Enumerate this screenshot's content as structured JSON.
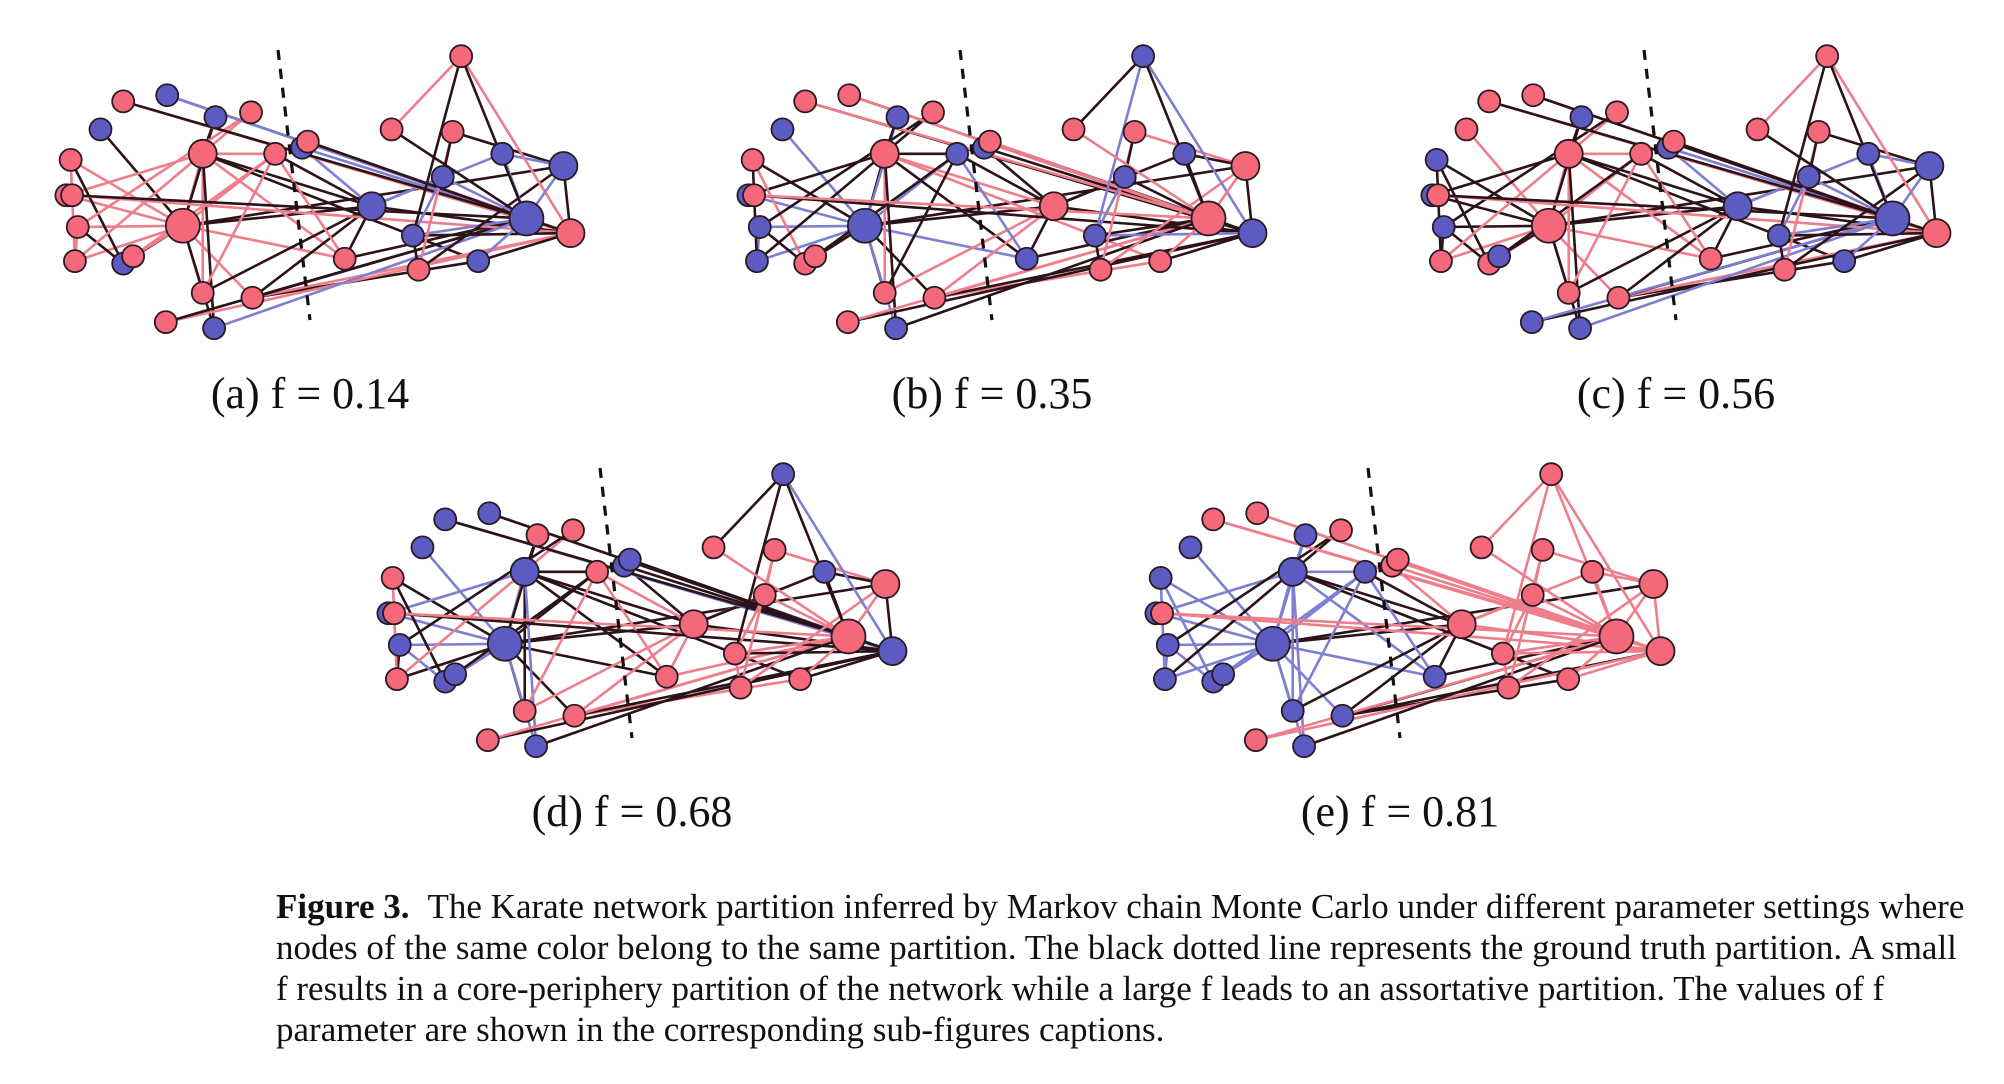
{
  "figure": {
    "colors": {
      "red": "#f4687a",
      "blue": "#5b5bc2"
    },
    "panels": [
      {
        "id": "a",
        "caption": "(a) f = 0.14",
        "f": 0.14
      },
      {
        "id": "b",
        "caption": "(b) f = 0.35",
        "f": 0.35
      },
      {
        "id": "c",
        "caption": "(c) f = 0.56",
        "f": 0.56
      },
      {
        "id": "d",
        "caption": "(d) f = 0.68",
        "f": 0.68
      },
      {
        "id": "e",
        "caption": "(e) f = 0.81",
        "f": 0.81
      }
    ],
    "caption": {
      "label": "Figure 3.",
      "text": "The Karate network partition inferred by Markov chain Monte Carlo under different parameter settings where nodes of the same color belong to the same partition. The black dotted line represents the ground truth partition. A small f results in a core-periphery partition of the network while a large f leads to an assortative partition. The values of f parameter are shown in the corresponding sub-figures captions."
    }
  }
}
